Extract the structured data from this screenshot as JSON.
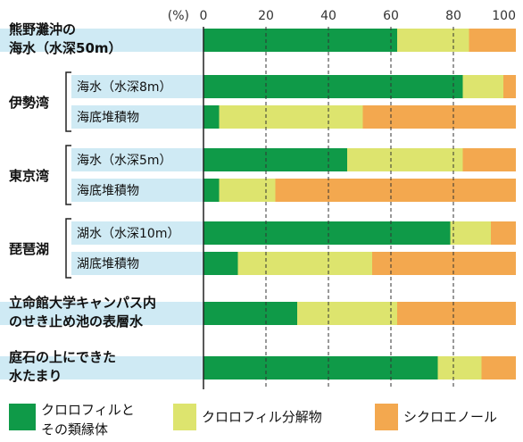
{
  "chart_data": {
    "type": "bar",
    "orientation": "horizontal",
    "stacked": true,
    "unit_label": "(%)",
    "xlim": [
      0,
      100
    ],
    "ticks": [
      "0",
      "20",
      "40",
      "60",
      "80",
      "100"
    ],
    "grid": true,
    "legend_position": "bottom",
    "series": [
      {
        "name": "クロロフィルとその類縁体",
        "color": "#0f9a48"
      },
      {
        "name": "クロロフィル分解物",
        "color": "#dde46e"
      },
      {
        "name": "シクロエノール",
        "color": "#f3a84f"
      }
    ],
    "groups": [
      {
        "label_lines": [
          "熊野灘沖の",
          "海水（水深50m）"
        ],
        "rows": [
          {
            "label": "",
            "values": [
              62,
              23,
              15
            ]
          }
        ]
      },
      {
        "label_lines": [
          "伊勢湾"
        ],
        "rows": [
          {
            "label": "海水（水深8m）",
            "values": [
              83,
              13,
              4
            ]
          },
          {
            "label": "海底堆積物",
            "values": [
              5,
              46,
              49
            ]
          }
        ]
      },
      {
        "label_lines": [
          "東京湾"
        ],
        "rows": [
          {
            "label": "海水（水深5m）",
            "values": [
              46,
              37,
              17
            ]
          },
          {
            "label": "海底堆積物",
            "values": [
              5,
              18,
              77
            ]
          }
        ]
      },
      {
        "label_lines": [
          "琵琶湖"
        ],
        "rows": [
          {
            "label": "湖水（水深10m）",
            "values": [
              79,
              13,
              8
            ]
          },
          {
            "label": "湖底堆積物",
            "values": [
              11,
              43,
              46
            ]
          }
        ]
      },
      {
        "label_lines": [
          "立命館大学キャンパス内",
          "のせき止め池の表層水"
        ],
        "rows": [
          {
            "label": "",
            "values": [
              30,
              32,
              38
            ]
          }
        ]
      },
      {
        "label_lines": [
          "庭石の上にできた",
          "水たまり"
        ],
        "rows": [
          {
            "label": "",
            "values": [
              75,
              14,
              11
            ]
          }
        ]
      }
    ],
    "legend_lines": [
      [
        "クロロフィルと",
        "その類縁体"
      ],
      [
        "クロロフィル分解物"
      ],
      [
        "シクロエノール"
      ]
    ]
  }
}
